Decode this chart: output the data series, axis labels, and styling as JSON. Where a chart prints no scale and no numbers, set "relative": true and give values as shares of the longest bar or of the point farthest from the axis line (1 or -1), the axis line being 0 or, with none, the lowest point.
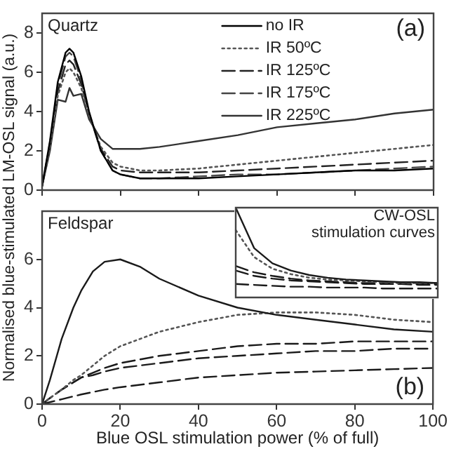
{
  "chart_data": [
    {
      "type": "line",
      "ylabel": "Normalised blue-stimulated LM-OSL signal (a.u.)",
      "annotations": [
        "Quartz",
        "(a)"
      ],
      "xlim": [
        0,
        100
      ],
      "xticks": [
        0,
        20,
        40,
        60,
        80,
        100
      ],
      "ylim": [
        0,
        9
      ],
      "yticks": [
        0,
        2,
        4,
        6,
        8
      ],
      "tick_labels": "y",
      "legend": "top right",
      "marker": "none",
      "x": [
        0,
        2,
        4,
        6,
        7,
        8,
        10,
        12,
        15,
        18,
        20,
        25,
        30,
        40,
        50,
        60,
        70,
        80,
        90,
        100
      ],
      "series": [
        {
          "name": "no IR",
          "color": "#000000",
          "line_style": "solid",
          "values": [
            0.2,
            2.5,
            5.5,
            7.0,
            7.2,
            7.0,
            5.8,
            4.0,
            2.0,
            1.0,
            0.8,
            0.6,
            0.6,
            0.6,
            0.7,
            0.8,
            0.9,
            1.0,
            1.0,
            1.1
          ]
        },
        {
          "name": "IR 50ºC",
          "color": "#555555",
          "line_style": "dotted",
          "values": [
            0.2,
            2.2,
            4.8,
            6.0,
            6.2,
            6.0,
            5.2,
            3.8,
            2.2,
            1.4,
            1.2,
            1.0,
            1.0,
            1.1,
            1.3,
            1.5,
            1.7,
            1.9,
            2.1,
            2.3
          ]
        },
        {
          "name": "IR 125ºC",
          "color": "#222222",
          "line_style": "dashed",
          "values": [
            0.2,
            2.3,
            5.0,
            6.4,
            6.6,
            6.4,
            5.4,
            3.9,
            2.1,
            1.2,
            1.0,
            0.9,
            0.9,
            0.9,
            1.0,
            1.1,
            1.2,
            1.3,
            1.4,
            1.5
          ]
        },
        {
          "name": "IR 175ºC",
          "color": "#444444",
          "line_style": "dashed",
          "values": [
            0.2,
            2.4,
            5.3,
            6.8,
            7.0,
            6.8,
            5.6,
            3.9,
            2.0,
            1.0,
            0.8,
            0.6,
            0.6,
            0.7,
            0.8,
            0.8,
            0.9,
            1.0,
            1.1,
            1.2
          ]
        },
        {
          "name": "IR 225ºC",
          "color": "#333333",
          "line_style": "solid",
          "values": [
            0.2,
            2.0,
            4.6,
            4.5,
            5.2,
            4.8,
            4.9,
            3.6,
            2.6,
            2.1,
            2.1,
            2.1,
            2.2,
            2.5,
            2.8,
            3.2,
            3.4,
            3.6,
            3.9,
            4.1
          ]
        }
      ]
    },
    {
      "type": "line",
      "xlabel": "Blue OSL stimulation power (% of full)",
      "annotations": [
        "Feldspar",
        "(b)"
      ],
      "xlim": [
        0,
        100
      ],
      "xticks": [
        0,
        20,
        40,
        60,
        80,
        100
      ],
      "ylim": [
        0,
        8
      ],
      "yticks": [
        0,
        2,
        4,
        6
      ],
      "marker": "none",
      "x": [
        0,
        2,
        5,
        8,
        10,
        13,
        16,
        20,
        25,
        30,
        40,
        50,
        60,
        70,
        80,
        90,
        100
      ],
      "series": [
        {
          "color": "#1a1a1a",
          "line_style": "solid",
          "values": [
            0,
            1.0,
            2.7,
            4.0,
            4.7,
            5.5,
            5.9,
            6.0,
            5.7,
            5.2,
            4.5,
            4.0,
            3.7,
            3.5,
            3.3,
            3.1,
            3.0
          ]
        },
        {
          "color": "#555555",
          "line_style": "dotted",
          "values": [
            0,
            0.25,
            0.6,
            1.0,
            1.2,
            1.6,
            2.0,
            2.4,
            2.7,
            3.0,
            3.4,
            3.7,
            3.8,
            3.8,
            3.7,
            3.5,
            3.4
          ]
        },
        {
          "color": "#1a1a1a",
          "line_style": "dashed",
          "values": [
            0,
            0.25,
            0.6,
            0.9,
            1.1,
            1.3,
            1.5,
            1.7,
            1.85,
            2.0,
            2.2,
            2.4,
            2.5,
            2.5,
            2.6,
            2.6,
            2.6
          ]
        },
        {
          "color": "#1a1a1a",
          "line_style": "dashed",
          "values": [
            0,
            0.25,
            0.6,
            0.9,
            1.1,
            1.2,
            1.35,
            1.5,
            1.6,
            1.7,
            1.9,
            2.0,
            2.1,
            2.2,
            2.2,
            2.3,
            2.3
          ]
        },
        {
          "color": "#1a1a1a",
          "line_style": "dashed",
          "values": [
            0,
            0.08,
            0.2,
            0.32,
            0.4,
            0.5,
            0.6,
            0.7,
            0.8,
            0.9,
            1.1,
            1.2,
            1.3,
            1.35,
            1.4,
            1.45,
            1.5
          ]
        }
      ]
    },
    {
      "type": "line",
      "title": "CW-OSL stimulation curves",
      "relative": true,
      "tick_labels": false,
      "marker": "none",
      "categories": [
        null,
        null,
        null,
        null,
        null,
        null,
        null,
        null,
        null,
        null,
        null,
        null
      ],
      "series": [
        {
          "color": "#1a1a1a",
          "line_style": "solid",
          "values": [
            1.0,
            0.55,
            0.38,
            0.3,
            0.25,
            0.22,
            0.2,
            0.19,
            0.18,
            0.17,
            0.17,
            0.16
          ]
        },
        {
          "color": "#555555",
          "line_style": "dotted",
          "values": [
            0.75,
            0.45,
            0.32,
            0.26,
            0.22,
            0.2,
            0.19,
            0.18,
            0.17,
            0.16,
            0.16,
            0.16
          ]
        },
        {
          "color": "#1a1a1a",
          "line_style": "dashed",
          "values": [
            0.35,
            0.28,
            0.24,
            0.21,
            0.19,
            0.18,
            0.17,
            0.16,
            0.16,
            0.15,
            0.15,
            0.15
          ]
        },
        {
          "color": "#1a1a1a",
          "line_style": "dashed",
          "values": [
            0.3,
            0.24,
            0.21,
            0.19,
            0.18,
            0.17,
            0.16,
            0.15,
            0.15,
            0.15,
            0.14,
            0.14
          ]
        },
        {
          "color": "#1a1a1a",
          "line_style": "dashed",
          "values": [
            0.15,
            0.14,
            0.13,
            0.12,
            0.12,
            0.11,
            0.11,
            0.11,
            0.1,
            0.1,
            0.1,
            0.1
          ]
        }
      ]
    }
  ]
}
